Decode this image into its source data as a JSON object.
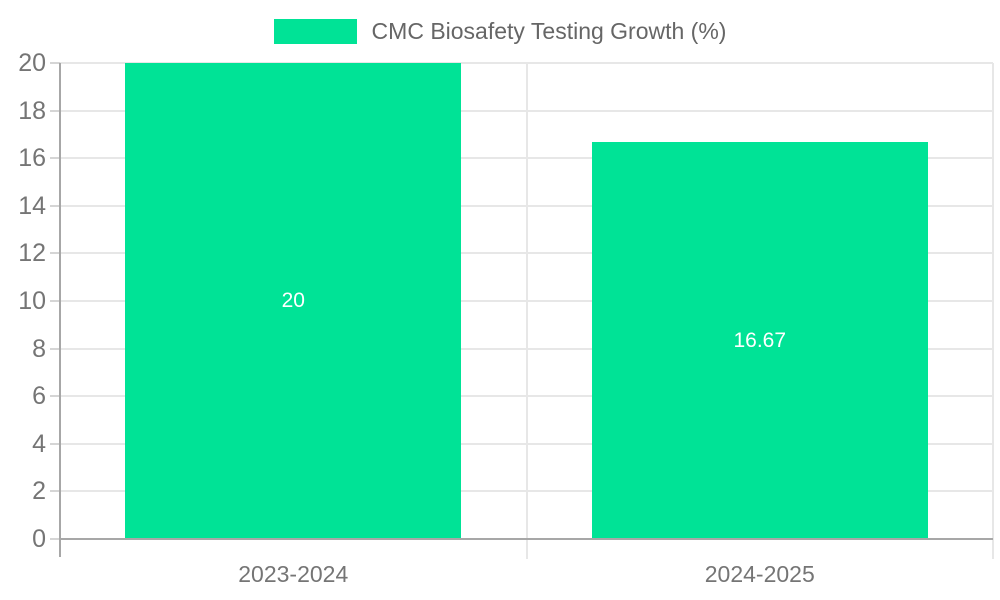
{
  "chart_data": {
    "type": "bar",
    "title": "",
    "legend": {
      "label": "CMC Biosafety Testing Growth (%)",
      "position": "top-center",
      "swatch_shape": "rect"
    },
    "categories": [
      "2023-2024",
      "2024-2025"
    ],
    "series": [
      {
        "name": "CMC Biosafety Testing Growth (%)",
        "values": [
          20,
          16.67
        ]
      }
    ],
    "bar_value_labels": [
      "20",
      "16.67"
    ],
    "xlabel": "",
    "ylabel": "",
    "ylim": [
      0,
      20
    ],
    "yticks": [
      0,
      2,
      4,
      6,
      8,
      10,
      12,
      14,
      16,
      18,
      20
    ],
    "ytick_labels": [
      "0",
      "2",
      "4",
      "6",
      "8",
      "10",
      "12",
      "14",
      "16",
      "18",
      "20"
    ],
    "grid": true,
    "colors": {
      "bar": "#00E396",
      "grid_line": "#E7E7E7",
      "axis_line": "#A7A7A7",
      "tick_mark": "#D5D5D5",
      "tick_label_text": "#757575",
      "legend_text": "#666666",
      "bar_label_text": "#FFFFFF",
      "background": "#FFFFFF"
    }
  }
}
